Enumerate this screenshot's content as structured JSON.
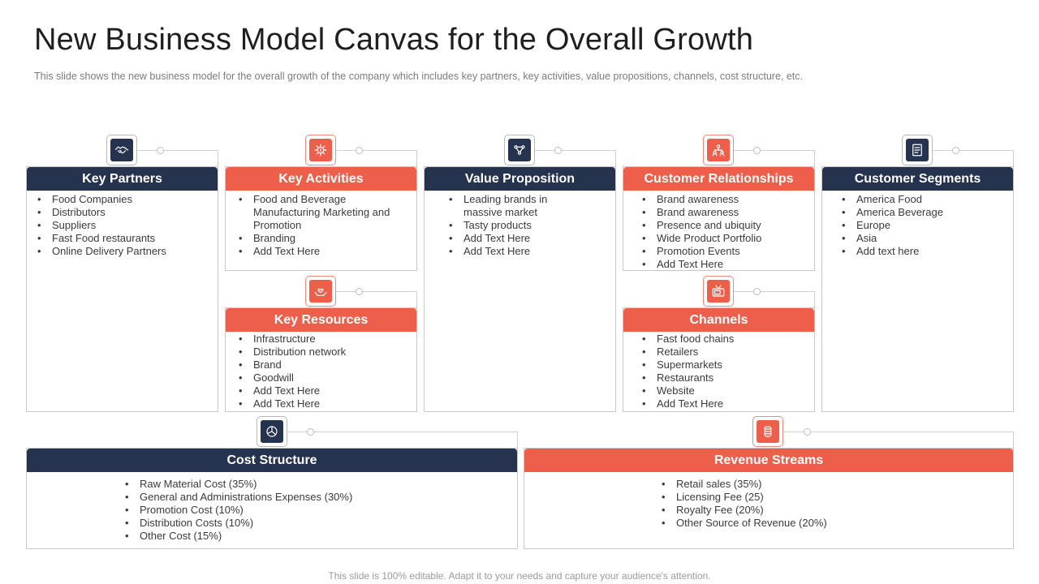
{
  "title": "New Business Model Canvas for the Overall Growth",
  "subtitle": "This slide shows the new business model for the overall  growth of the company which includes key partners, key activities, value  propositions, channels, cost structure, etc.",
  "footer": "This slide is 100% editable. Adapt it to your needs and capture your audience's attention.",
  "colors": {
    "navy": "#26334f",
    "red": "#ed5f4a"
  },
  "sections": {
    "key_partners": {
      "title": "Key Partners",
      "icon": "handshake-icon",
      "items": [
        "Food Companies",
        "Distributors",
        "Suppliers",
        "Fast Food restaurants",
        "Online Delivery  Partners"
      ]
    },
    "key_activities": {
      "title": "Key Activities",
      "icon": "gear-dollar-icon",
      "items": [
        "Food and Beverage Manufacturing Marketing and Promotion",
        "Branding",
        "Add Text Here"
      ]
    },
    "key_resources": {
      "title": "Key Resources",
      "icon": "hands-heart-icon",
      "items": [
        "Infrastructure",
        "Distribution network",
        "Brand",
        "Goodwill",
        "Add Text Here",
        "Add Text Here"
      ]
    },
    "value_proposition": {
      "title": "Value Proposition",
      "icon": "network-icon",
      "items": [
        "Leading brands in massive market",
        "Tasty products",
        "Add Text Here",
        "Add Text Here"
      ]
    },
    "customer_relationships": {
      "title": "Customer Relationships",
      "icon": "people-hierarchy-icon",
      "items": [
        "Brand awareness",
        "Brand awareness",
        "Presence and ubiquity",
        "Wide Product Portfolio",
        "Promotion Events",
        "Add Text Here"
      ]
    },
    "channels": {
      "title": "Channels",
      "icon": "tv-icon",
      "items": [
        "Fast food  chains",
        "Retailers",
        "Supermarkets",
        "Restaurants",
        "Website",
        "Add Text Here"
      ]
    },
    "customer_segments": {
      "title": "Customer Segments",
      "icon": "document-list-icon",
      "items": [
        "America Food",
        "America Beverage",
        "Europe",
        "Asia",
        "Add text here"
      ]
    },
    "cost_structure": {
      "title": "Cost Structure",
      "icon": "pie-globe-icon",
      "items": [
        "Raw Material Cost (35%)",
        "General  and Administrations Expenses (30%)",
        "Promotion Cost (10%)",
        "Distribution Costs (10%)",
        "Other Cost (15%)"
      ]
    },
    "revenue_streams": {
      "title": "Revenue Streams",
      "icon": "coin-stack-icon",
      "items": [
        "Retail sales (35%)",
        "Licensing Fee (25)",
        "Royalty Fee (20%)",
        "Other Source of Revenue  (20%)"
      ]
    }
  }
}
